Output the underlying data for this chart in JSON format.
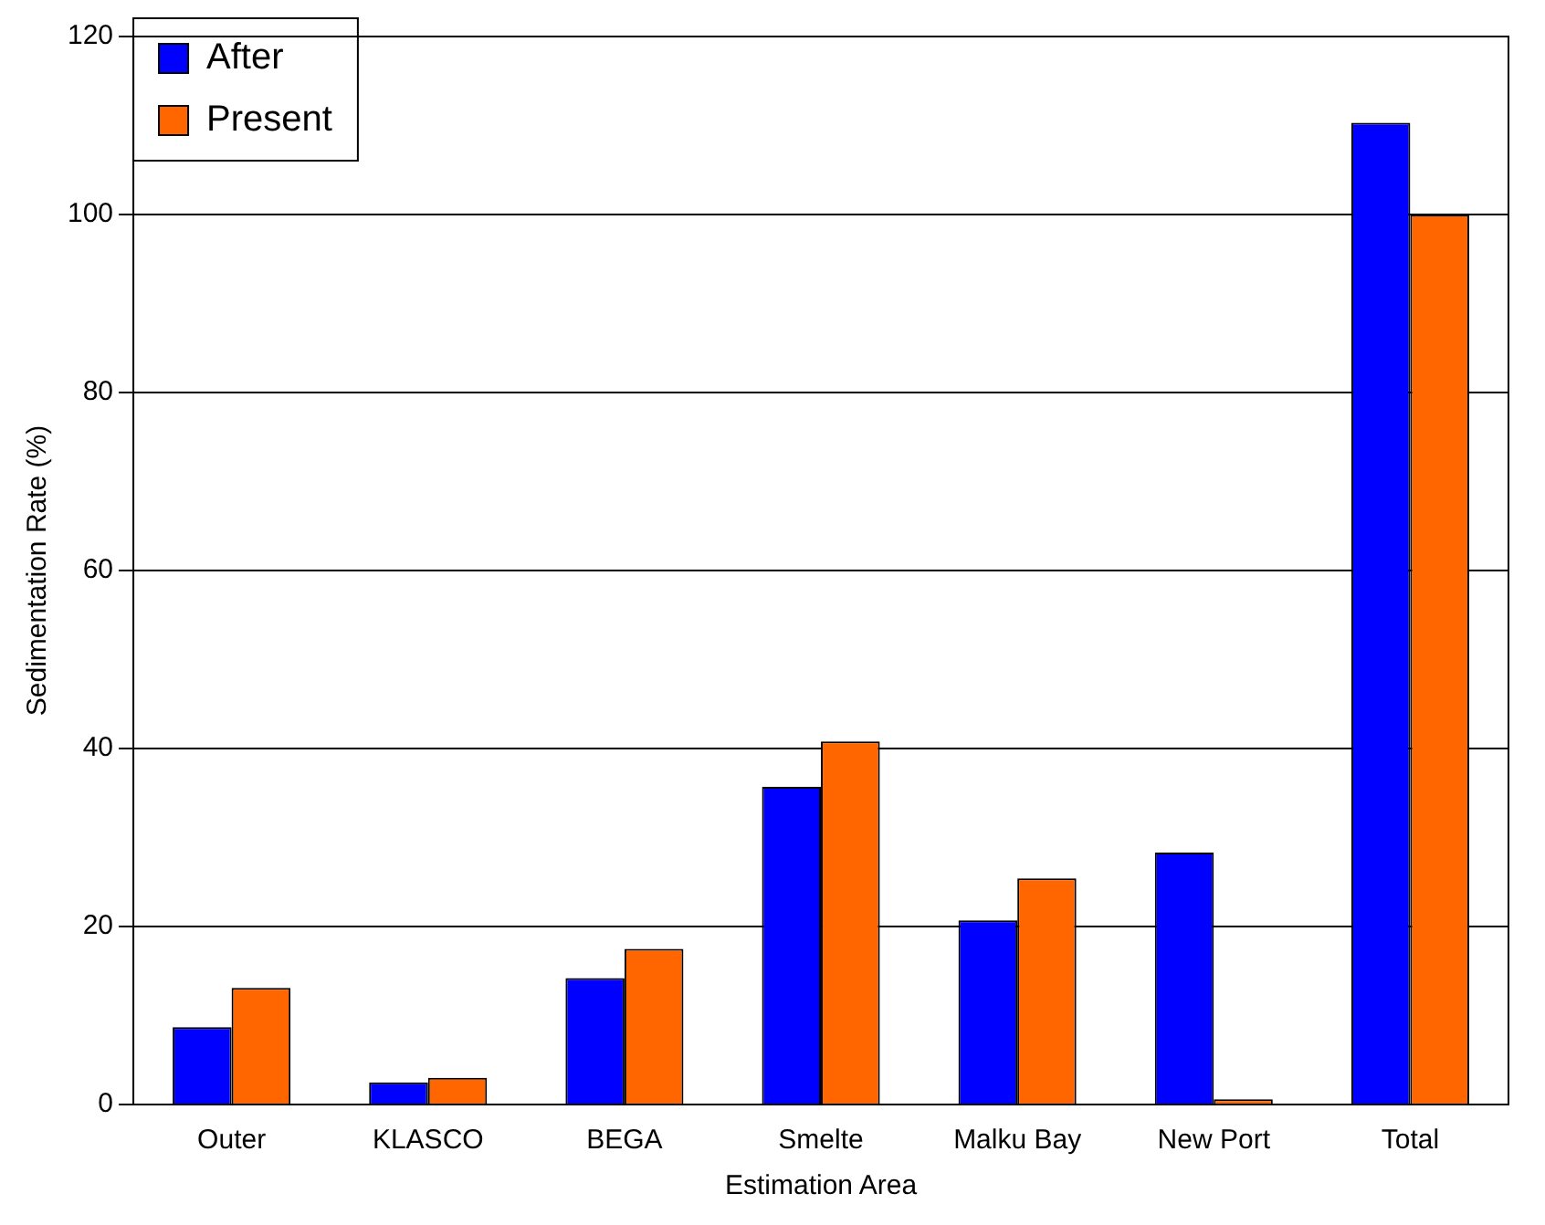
{
  "chart_data": {
    "type": "bar",
    "xlabel": "Estimation Area",
    "ylabel": "Sedimentation Rate (%)",
    "categories": [
      "Outer",
      "KLASCO",
      "BEGA",
      "Smelte",
      "Malku Bay",
      "New Port",
      "Total"
    ],
    "series": [
      {
        "name": "After",
        "color": "#0000ff",
        "values": [
          8.7,
          2.5,
          14.2,
          35.7,
          20.7,
          28.3,
          110.3
        ]
      },
      {
        "name": "Present",
        "color": "#ff6600",
        "values": [
          13.1,
          3.0,
          17.5,
          40.8,
          25.4,
          0.6,
          100
        ]
      }
    ],
    "ylim": [
      0,
      120
    ],
    "yticks": [
      0,
      20,
      40,
      60,
      80,
      100,
      120
    ],
    "grid": "y",
    "legend": "top left"
  }
}
